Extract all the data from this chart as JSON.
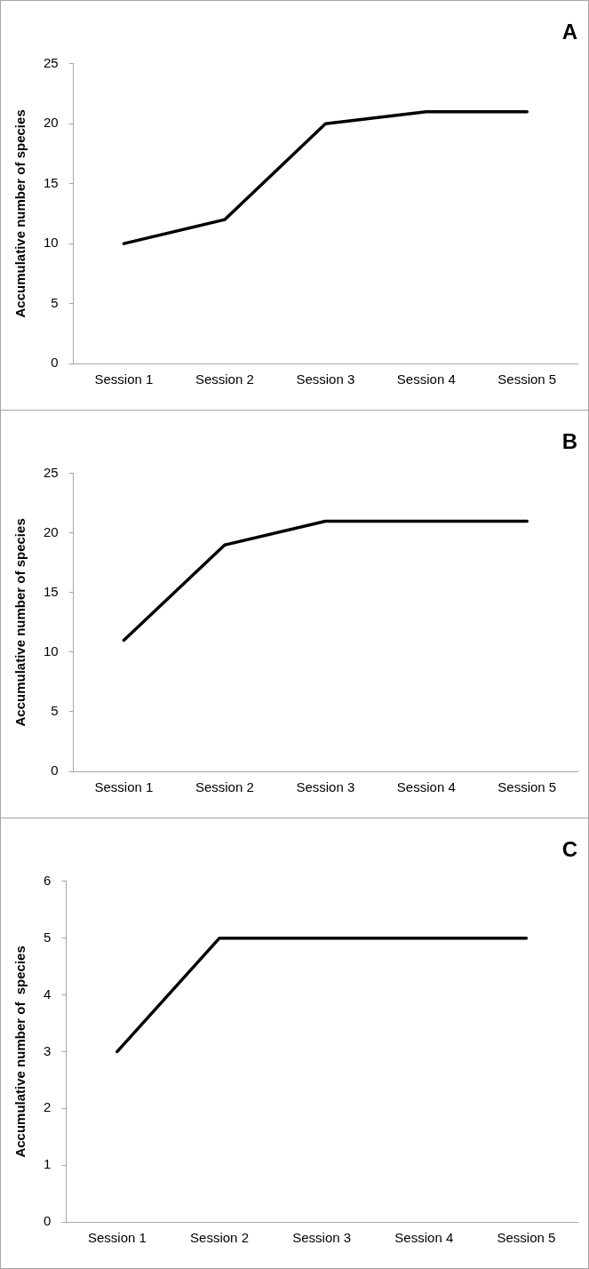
{
  "chart_data": [
    {
      "type": "line",
      "title": "A",
      "ylabel": "Accumulative number of species",
      "categories": [
        "Session 1",
        "Session 2",
        "Session 3",
        "Session 4",
        "Session 5"
      ],
      "series": [
        {
          "color": "#000000",
          "values": [
            10,
            12,
            20,
            21,
            21
          ]
        }
      ],
      "ylim": [
        0,
        25
      ],
      "yticks": [
        0,
        5,
        10,
        15,
        20,
        25
      ],
      "grid": false,
      "legend": false,
      "marker": "none",
      "line_style": "solid"
    },
    {
      "type": "line",
      "title": "B",
      "ylabel": "Accumulative number of species",
      "categories": [
        "Session 1",
        "Session 2",
        "Session 3",
        "Session 4",
        "Session 5"
      ],
      "series": [
        {
          "color": "#000000",
          "values": [
            11,
            19,
            21,
            21,
            21
          ]
        }
      ],
      "ylim": [
        0,
        25
      ],
      "yticks": [
        0,
        5,
        10,
        15,
        20,
        25
      ],
      "grid": false,
      "legend": false,
      "marker": "none",
      "line_style": "solid"
    },
    {
      "type": "line",
      "title": "C",
      "ylabel": "Accumulative number of  species",
      "categories": [
        "Session 1",
        "Session 2",
        "Session 3",
        "Session 4",
        "Session 5"
      ],
      "series": [
        {
          "color": "#000000",
          "values": [
            3,
            5,
            5,
            5,
            5
          ]
        }
      ],
      "ylim": [
        0,
        6
      ],
      "yticks": [
        0,
        1,
        2,
        3,
        4,
        5,
        6
      ],
      "grid": false,
      "legend": false,
      "marker": "none",
      "line_style": "solid"
    }
  ]
}
